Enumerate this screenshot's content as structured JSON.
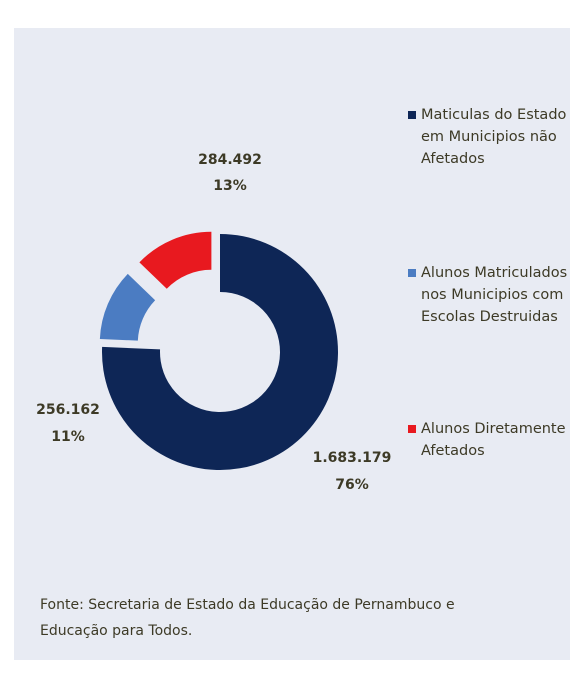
{
  "chart_data": {
    "type": "donut",
    "series": [
      {
        "name": "Maticulas do Estado em Municipios não Afetados",
        "color": "#0e2656"
      },
      {
        "name": "Alunos Matriculados nos Municipios com Escolas Destruidas",
        "color": "#4b7cc2"
      },
      {
        "name": "Alunos Diretamente Afetados",
        "color": "#e8191f"
      }
    ],
    "values": [
      1683179,
      256162,
      284492
    ],
    "value_labels": [
      "1.683.179",
      "256.162",
      "284.492"
    ],
    "percentages": [
      76,
      11,
      13
    ],
    "percentage_labels": [
      "76%",
      "11%",
      "13%"
    ],
    "source": "Fonte: Secretaria de Estado da Educação de Pernambuco e Educação para Todos."
  }
}
